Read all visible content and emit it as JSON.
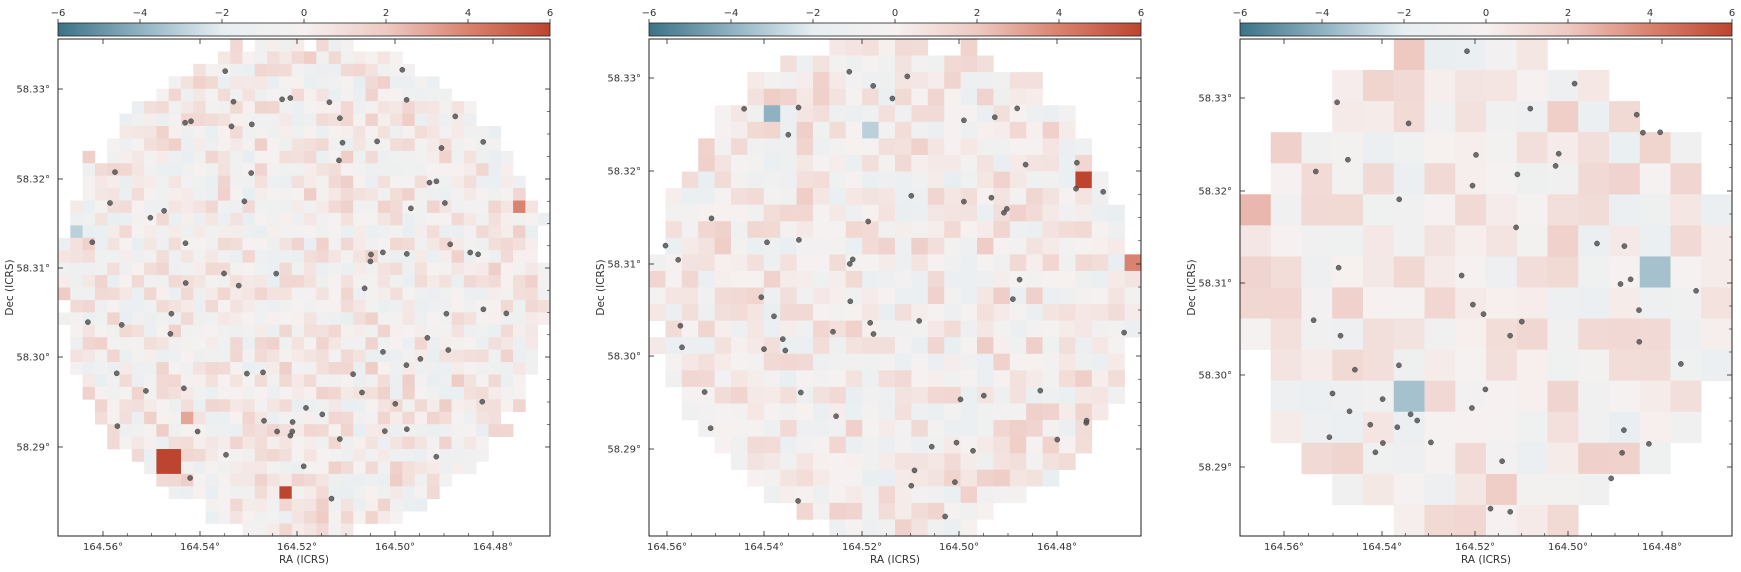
{
  "colorbar": {
    "ticks": [
      -6,
      -4,
      -2,
      0,
      2,
      4,
      6
    ],
    "tick_labels": [
      "−6",
      "−4",
      "−2",
      "0",
      "2",
      "4",
      "6"
    ],
    "cmap": [
      "#3c7288",
      "#8fb2c2",
      "#e6eef1",
      "#f6f1f0",
      "#eec9c2",
      "#d9826f",
      "#bd4530"
    ]
  },
  "chart_data": [
    {
      "type": "heatmap",
      "xlabel": "RA (ICRS)",
      "ylabel": "Dec (ICRS)",
      "x_ticks": [
        "164.56°",
        "164.54°",
        "164.52°",
        "164.50°",
        "164.48°"
      ],
      "y_ticks": [
        "58.33°",
        "58.32°",
        "58.31°",
        "58.30°",
        "58.29°"
      ],
      "grid": {
        "cols": 40,
        "rows": 40
      },
      "scale": {
        "min": -6,
        "max": 6
      },
      "highlights": [
        {
          "c": 8,
          "r": 33,
          "v": 6
        },
        {
          "c": 9,
          "r": 33,
          "v": 6
        },
        {
          "c": 8,
          "r": 34,
          "v": 6
        },
        {
          "c": 9,
          "r": 34,
          "v": 6
        },
        {
          "c": 18,
          "r": 36,
          "v": 6
        },
        {
          "c": 37,
          "r": 13,
          "v": 4
        },
        {
          "c": 10,
          "r": 30,
          "v": 3
        },
        {
          "c": 1,
          "r": 15,
          "v": -3
        }
      ],
      "points": 80
    },
    {
      "type": "heatmap",
      "xlabel": "RA (ICRS)",
      "ylabel": "Dec (ICRS)",
      "x_ticks": [
        "164.56°",
        "164.54°",
        "164.52°",
        "164.50°",
        "164.48°"
      ],
      "y_ticks": [
        "58.33°",
        "58.32°",
        "58.31°",
        "58.30°",
        "58.29°"
      ],
      "grid": {
        "cols": 30,
        "rows": 30
      },
      "scale": {
        "min": -6,
        "max": 6
      },
      "highlights": [
        {
          "c": 26,
          "r": 8,
          "v": 6
        },
        {
          "c": 29,
          "r": 13,
          "v": 4
        },
        {
          "c": 29,
          "r": 8,
          "v": 3
        },
        {
          "c": 7,
          "r": 4,
          "v": -4
        },
        {
          "c": 13,
          "r": 5,
          "v": -3
        }
      ],
      "points": 60
    },
    {
      "type": "heatmap",
      "xlabel": "RA (ICRS)",
      "ylabel": "Dec (ICRS)",
      "x_ticks": [
        "164.56°",
        "164.54°",
        "164.52°",
        "164.50°",
        "164.48°"
      ],
      "y_ticks": [
        "58.33°",
        "58.32°",
        "58.31°",
        "58.30°",
        "58.29°"
      ],
      "grid": {
        "cols": 16,
        "rows": 16
      },
      "scale": {
        "min": -6,
        "max": 6
      },
      "highlights": [
        {
          "c": 5,
          "r": 11,
          "v": -3.5
        },
        {
          "c": 13,
          "r": 7,
          "v": -3.5
        },
        {
          "c": 0,
          "r": 5,
          "v": 2.5
        },
        {
          "c": 5,
          "r": 0,
          "v": 2
        }
      ],
      "points": 55
    }
  ]
}
